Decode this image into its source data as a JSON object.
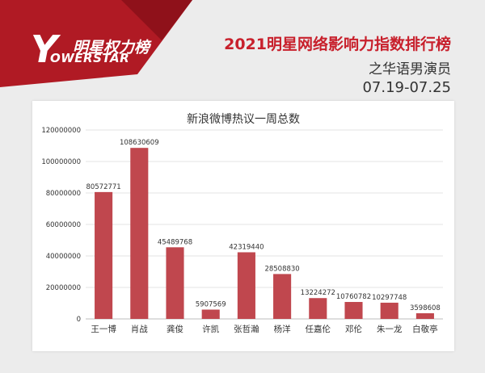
{
  "brand": {
    "logo_cn": "明星权力榜",
    "logo_en": "OWERSTAR",
    "logo_initial": "Y"
  },
  "header": {
    "title": "2021明星网络影响力指数排行榜",
    "subtitle": "之华语男演员",
    "date_range": "07.19-07.25"
  },
  "colors": {
    "accent": "#c8202c",
    "bar": "#c0474e",
    "banner": "#b01a24"
  },
  "chart_data": {
    "type": "bar",
    "title": "新浪微博热议一周总数",
    "categories": [
      "王一博",
      "肖战",
      "龚俊",
      "许凯",
      "张哲瀚",
      "杨洋",
      "任嘉伦",
      "邓伦",
      "朱一龙",
      "白敬亭"
    ],
    "values": [
      80572771,
      108630609,
      45489768,
      5907569,
      42319440,
      28508830,
      13224272,
      10760782,
      10297748,
      3598608
    ],
    "ylim": [
      0,
      120000000
    ],
    "yticks": [
      0,
      20000000,
      40000000,
      60000000,
      80000000,
      100000000,
      120000000
    ],
    "grid": true
  }
}
